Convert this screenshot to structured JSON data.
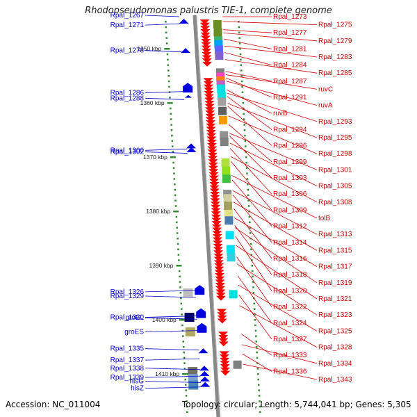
{
  "title": "Rhodopseudomonas palustris TIE-1, complete genome",
  "footer": {
    "accession": "Accession: NC_011004",
    "topology": "Topology: circular; Length: 5,744,041 bp; Genes: 5,305"
  },
  "colors": {
    "left_gene": "#0000e0",
    "right_gene": "#ff0000",
    "label_left": "#0000c8",
    "label_right": "#d20000",
    "tick": "#2e8b2e",
    "axis": "#888888"
  },
  "scale_labels": [
    {
      "label": "1350 kbp",
      "pos": 1350
    },
    {
      "label": "1360 kbp",
      "pos": 1360
    },
    {
      "label": "1370 kbp",
      "pos": 1370
    },
    {
      "label": "1380 kbp",
      "pos": 1380
    },
    {
      "label": "1390 kbp",
      "pos": 1390
    },
    {
      "label": "1400 kbp",
      "pos": 1400
    },
    {
      "label": "1410 kbp",
      "pos": 1410
    }
  ],
  "left_genes": [
    {
      "label": "Rpal_1267",
      "pos": 1344.1
    },
    {
      "label": "Rpal_1271",
      "pos": 1345.4
    },
    {
      "label": "Rpal_1278",
      "pos": 1350.6
    },
    {
      "label": "Rpal_1286",
      "pos": 1357.9
    },
    {
      "label": "Rpal_1288",
      "pos": 1359.4
    },
    {
      "label": "Rpal_1300",
      "pos": 1368.5
    },
    {
      "label": "Rpal_1302",
      "pos": 1369.3
    },
    {
      "label": "Rpal_1326",
      "pos": 1394.6
    },
    {
      "label": "Rpal_1329",
      "pos": 1395.9
    },
    {
      "label": "Rpal_1330",
      "pos": 1399.3
    },
    {
      "label": "groEL",
      "pos": 1399.9
    },
    {
      "label": "groES",
      "pos": 1402.0
    },
    {
      "label": "Rpal_1335",
      "pos": 1405.6
    },
    {
      "label": "Rpal_1337",
      "pos": 1407.2
    },
    {
      "label": "Rpal_1338",
      "pos": 1409.2
    },
    {
      "label": "Rpal_1339",
      "pos": 1410.4
    },
    {
      "label": "hisG",
      "pos": 1411.6
    },
    {
      "label": "hisZ",
      "pos": 1412.4
    }
  ],
  "right_genes": [
    {
      "label": "Rpal_1273",
      "pos": 1344.1
    },
    {
      "label": "Rpal_1275",
      "pos": 1345.0
    },
    {
      "label": "Rpal_1277",
      "pos": 1346.5
    },
    {
      "label": "Rpal_1279",
      "pos": 1347.1
    },
    {
      "label": "Rpal_1281",
      "pos": 1348.2
    },
    {
      "label": "Rpal_1283",
      "pos": 1349.5
    },
    {
      "label": "Rpal_1284",
      "pos": 1350.7
    },
    {
      "label": "Rpal_1285",
      "pos": 1352.0
    },
    {
      "label": "Rpal_1287",
      "pos": 1354.2
    },
    {
      "label": "ruvC",
      "pos": 1354.8
    },
    {
      "label": "Rpal_1291",
      "pos": 1355.4
    },
    {
      "label": "ruvA",
      "pos": 1356.0
    },
    {
      "label": "ruvB",
      "pos": 1357.6
    },
    {
      "label": "Rpal_1293",
      "pos": 1358.2
    },
    {
      "label": "Rpal_1294",
      "pos": 1358.8
    },
    {
      "label": "Rpal_1295",
      "pos": 1360.1
    },
    {
      "label": "Rpal_1296",
      "pos": 1360.6
    },
    {
      "label": "Rpal_1298",
      "pos": 1362.4
    },
    {
      "label": "Rpal_1299",
      "pos": 1364.0
    },
    {
      "label": "Rpal_1301",
      "pos": 1365.6
    },
    {
      "label": "Rpal_1303",
      "pos": 1366.1
    },
    {
      "label": "Rpal_1305",
      "pos": 1367.4
    },
    {
      "label": "Rpal_1306",
      "pos": 1368.4
    },
    {
      "label": "Rpal_1308",
      "pos": 1369.9
    },
    {
      "label": "Rpal_1309",
      "pos": 1370.8
    },
    {
      "label": "tolB",
      "pos": 1373.4
    },
    {
      "label": "Rpal_1312",
      "pos": 1374.2
    },
    {
      "label": "Rpal_1313",
      "pos": 1376.2
    },
    {
      "label": "Rpal_1314",
      "pos": 1377.0
    },
    {
      "label": "Rpal_1315",
      "pos": 1378.3
    },
    {
      "label": "Rpal_1316",
      "pos": 1379.5
    },
    {
      "label": "Rpal_1317",
      "pos": 1381.2
    },
    {
      "label": "Rpal_1318",
      "pos": 1382.6
    },
    {
      "label": "Rpal_1319",
      "pos": 1383.0
    },
    {
      "label": "Rpal_1320",
      "pos": 1384.6
    },
    {
      "label": "Rpal_1321",
      "pos": 1386.3
    },
    {
      "label": "Rpal_1322",
      "pos": 1388.4
    },
    {
      "label": "Rpal_1323",
      "pos": 1389.7
    },
    {
      "label": "Rpal_1324",
      "pos": 1391.9
    },
    {
      "label": "Rpal_1325",
      "pos": 1393.6
    },
    {
      "label": "Rpal_1327",
      "pos": 1395.4
    },
    {
      "label": "Rpal_1328",
      "pos": 1397.4
    },
    {
      "label": "Rpal_1333",
      "pos": 1402.6
    },
    {
      "label": "Rpal_1334",
      "pos": 1404.6
    },
    {
      "label": "Rpal_1336",
      "pos": 1406.3
    },
    {
      "label": "Rpal_1343",
      "pos": 1408.2
    }
  ]
}
